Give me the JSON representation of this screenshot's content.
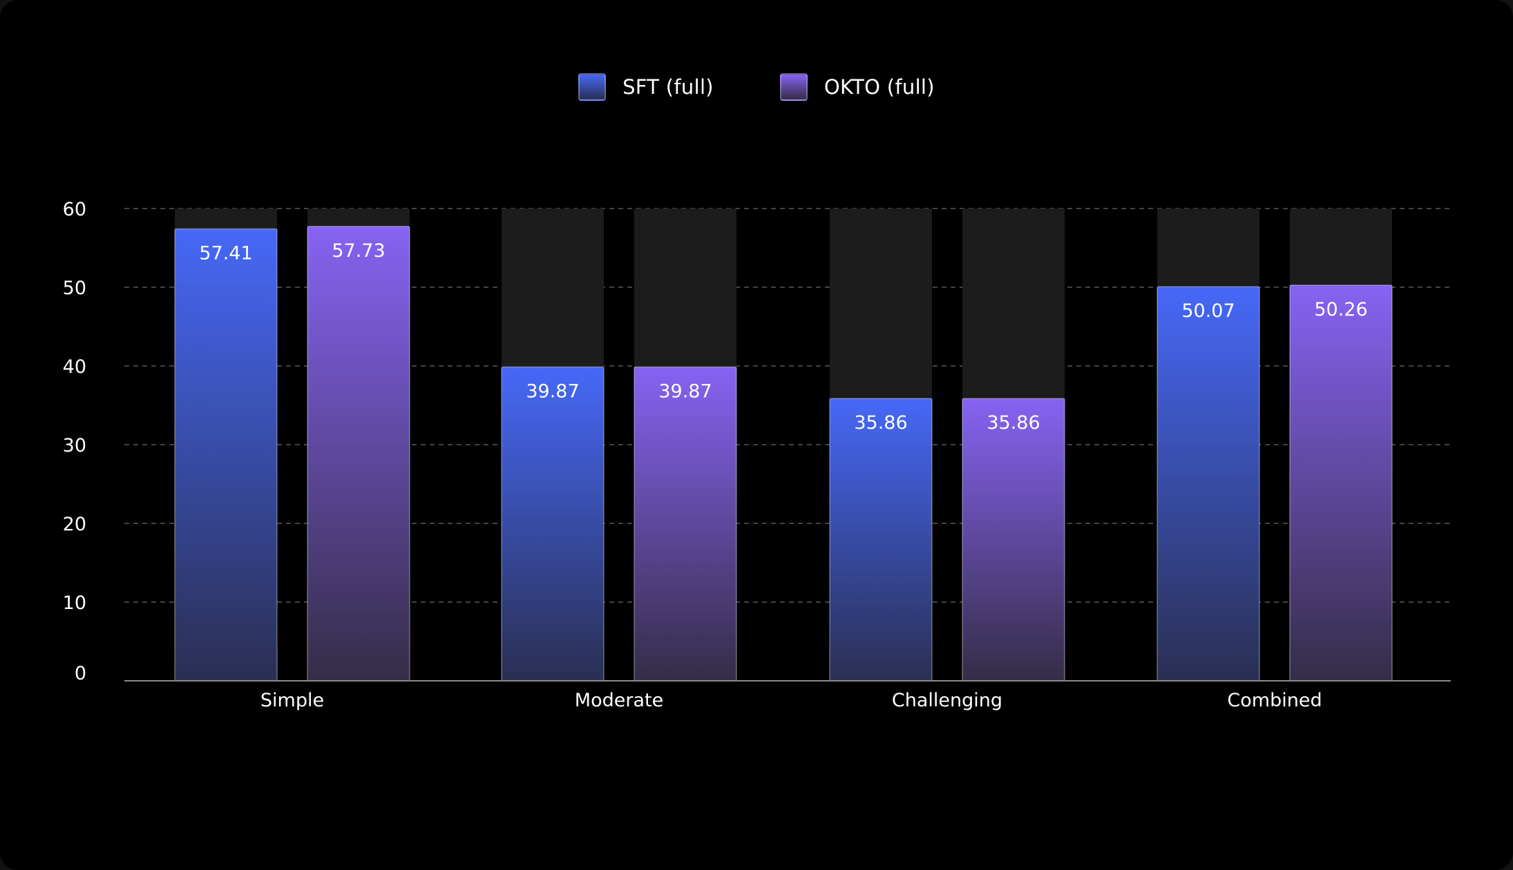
{
  "chart_data": {
    "type": "bar",
    "title": "",
    "xlabel": "",
    "ylabel": "",
    "categories": [
      "Simple",
      "Moderate",
      "Challenging",
      "Combined"
    ],
    "series": [
      {
        "name": "SFT (full)",
        "values": [
          57.41,
          39.87,
          35.86,
          50.07
        ],
        "labels": [
          "57.41",
          "39.87",
          "35.86",
          "50.07"
        ],
        "color_top": "#4668f7",
        "color_bottom": "#2a2f52"
      },
      {
        "name": "OKTO (full)",
        "values": [
          57.73,
          39.87,
          35.86,
          50.26
        ],
        "labels": [
          "57.73",
          "39.87",
          "35.86",
          "50.26"
        ],
        "color_top": "#8663f2",
        "color_bottom": "#352d47"
      }
    ],
    "yticks": [
      "0",
      "10",
      "20",
      "30",
      "40",
      "50",
      "60"
    ],
    "ylim": [
      0,
      60
    ],
    "grid": true,
    "legend_position": "top-center"
  },
  "colors": {
    "background": "#000000",
    "track": "#1c1c1c",
    "grid": "#5a5a5a",
    "axis": "#8a8a8a"
  }
}
